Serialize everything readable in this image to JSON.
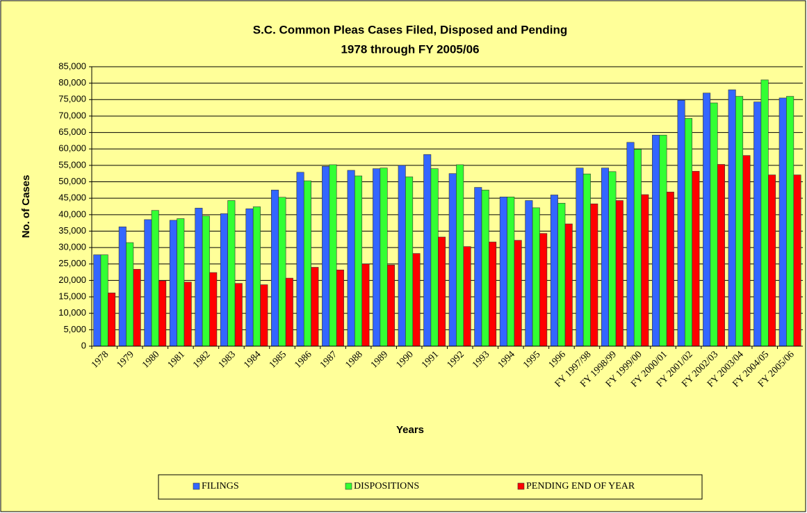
{
  "chart_data": {
    "type": "bar",
    "title": "S.C. Common Pleas Cases Filed, Disposed and Pending",
    "subtitle": "1978 through FY 2005/06",
    "x_label": "Years",
    "y_label": "No. of Cases",
    "categories": [
      "1978",
      "1979",
      "1980",
      "1981",
      "1982",
      "1983",
      "1984",
      "1985",
      "1986",
      "1987",
      "1988",
      "1989",
      "1990",
      "1991",
      "1992",
      "1993",
      "1994",
      "1995",
      "1996",
      "FY 1997/98",
      "FY 1998/99",
      "FY 1999/00",
      "FY 2000/01",
      "FY 2001/02",
      "FY 2002/03",
      "FY 2003/04",
      "FY 2004/05",
      "FY 2005/06"
    ],
    "series": [
      {
        "name": "FILINGS",
        "color": "#3366ff",
        "values": [
          27800,
          36300,
          38500,
          38300,
          42000,
          40300,
          41800,
          47500,
          52900,
          54700,
          53500,
          54000,
          55000,
          58300,
          52500,
          48300,
          45400,
          44300,
          46000,
          54200,
          54200,
          62000,
          64200,
          74800,
          77000,
          78000,
          74300,
          75500
        ]
      },
      {
        "name": "DISPOSITIONS",
        "color": "#33ff33",
        "values": [
          27800,
          31500,
          41300,
          38800,
          39600,
          44300,
          42400,
          45300,
          50300,
          55200,
          51800,
          54200,
          51500,
          54000,
          55200,
          47500,
          45400,
          42100,
          43500,
          52400,
          53100,
          59900,
          64200,
          69300,
          74000,
          76000,
          81000,
          76000
        ]
      },
      {
        "name": "PENDING END OF YEAR",
        "color": "#ff0000",
        "values": [
          16200,
          23400,
          19900,
          19500,
          22400,
          19100,
          18700,
          20700,
          24000,
          23200,
          25000,
          24700,
          28200,
          33200,
          30300,
          31700,
          32200,
          34300,
          37200,
          43300,
          44300,
          46100,
          46900,
          53200,
          55300,
          58000,
          52100,
          52100
        ]
      }
    ],
    "ylim": [
      0,
      85000
    ],
    "yticks": [
      0,
      {
        "value": 5000,
        "label": "5,000"
      },
      {
        "value": 10000,
        "label": "10,000"
      },
      {
        "value": 15000,
        "label": "15,000"
      },
      {
        "value": 20000,
        "label": "20,000"
      },
      {
        "value": 25000,
        "label": "25,000"
      },
      {
        "value": 30000,
        "label": "30,000"
      },
      {
        "value": 35000,
        "label": "35,000"
      },
      {
        "value": 40000,
        "label": "40,000"
      },
      {
        "value": 45000,
        "label": "45,000"
      },
      {
        "value": 50000,
        "label": "50,000"
      },
      {
        "value": 55000,
        "label": "55,000"
      },
      {
        "value": 60000,
        "label": "60,000"
      },
      {
        "value": 65000,
        "label": "65,000"
      },
      {
        "value": 70000,
        "label": "70,000"
      },
      {
        "value": 75000,
        "label": "75,000"
      },
      {
        "value": 80000,
        "label": "80,000"
      },
      {
        "value": 85000,
        "label": "85,000"
      }
    ],
    "grid": true,
    "legend": "bottom"
  }
}
